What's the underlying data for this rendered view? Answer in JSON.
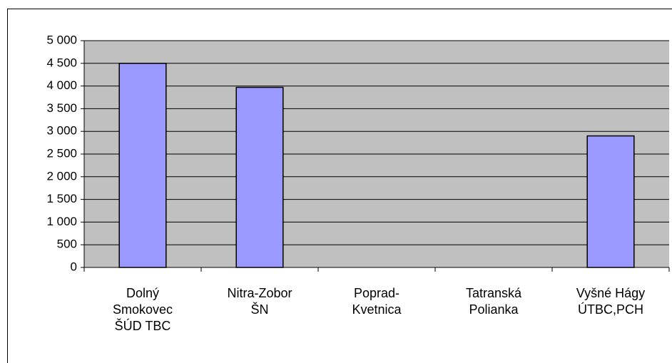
{
  "chart_data": {
    "type": "bar",
    "categories": [
      "Dolný Smokovec ŠÚD TBC",
      "Nitra-Zobor ŠN",
      "Poprad-Kvetnica",
      "Tatranská Polianka",
      "Vyšné Hágy ÚTBC,PCH"
    ],
    "values": [
      4500,
      3970,
      0,
      0,
      2900
    ],
    "color": "#9999ff",
    "ylim": [
      0,
      5000
    ],
    "yticks": [
      0,
      500,
      {
        "value": 1000,
        "label": "1 000"
      },
      {
        "value": 1500,
        "label": "1 500"
      },
      {
        "value": 2000,
        "label": "2 000"
      },
      {
        "value": 2500,
        "label": "2 500"
      },
      {
        "value": 3000,
        "label": "3 000"
      },
      {
        "value": 3500,
        "label": "3 500"
      },
      {
        "value": 4000,
        "label": "4 000"
      },
      {
        "value": 4500,
        "label": "4 500"
      },
      {
        "value": 5000,
        "label": "5 000"
      }
    ],
    "grid": true
  }
}
